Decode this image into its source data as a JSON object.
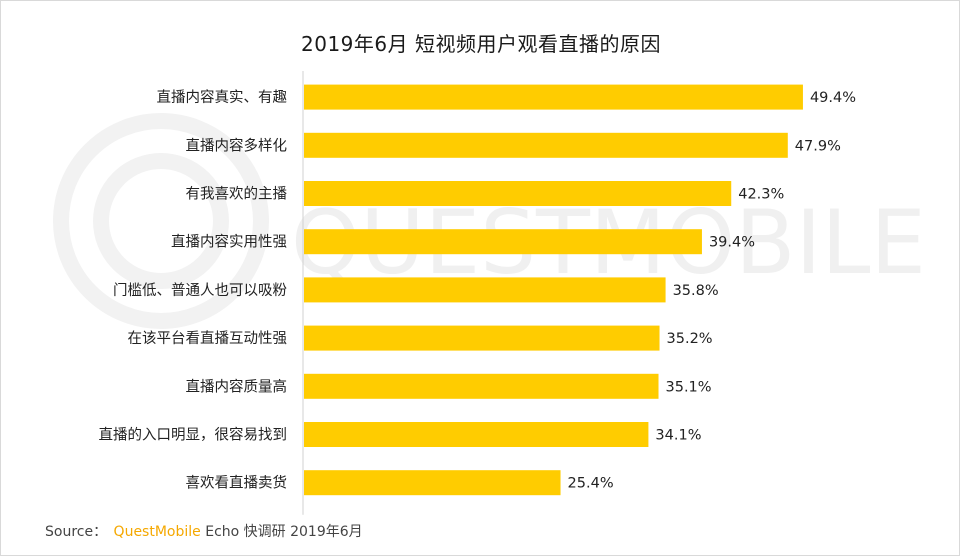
{
  "chart_data": {
    "type": "bar",
    "orientation": "horizontal",
    "title": "2019年6月 短视频用户观看直播的原因",
    "categories": [
      "直播内容真实、有趣",
      "直播内容多样化",
      "有我喜欢的主播",
      "直播内容实用性强",
      "门槛低、普通人也可以吸粉",
      "在该平台看直播互动性强",
      "直播内容质量高",
      "直播的入口明显，很容易找到",
      "喜欢看直播卖货"
    ],
    "values": [
      49.4,
      47.9,
      42.3,
      39.4,
      35.8,
      35.2,
      35.1,
      34.1,
      25.4
    ],
    "value_labels": [
      "49.4%",
      "47.9%",
      "42.3%",
      "39.4%",
      "35.8%",
      "35.2%",
      "35.1%",
      "34.1%",
      "25.4%"
    ],
    "unit": "%",
    "xlim": [
      0,
      50
    ],
    "grid": false,
    "legend": "none",
    "bar_color": "#FFCC00"
  },
  "source": {
    "prefix": "Source：",
    "brand": "QuestMobile",
    "rest": "Echo 快调研 2019年6月"
  },
  "watermark": {
    "text": "QUESTMOBILE"
  }
}
